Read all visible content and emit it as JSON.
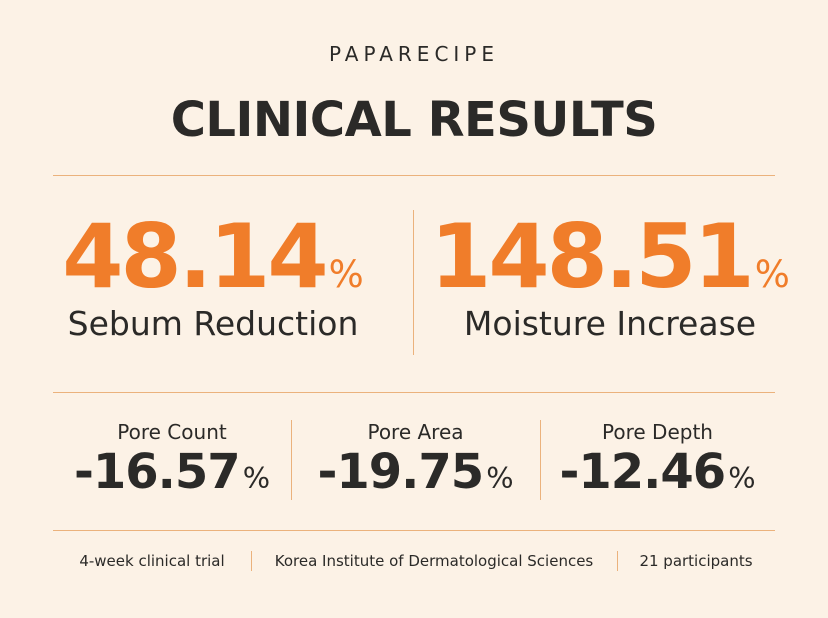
{
  "brand": "PAPARECIPE",
  "title": "CLINICAL RESULTS",
  "main_stats": [
    {
      "value": 48.14,
      "unit": "%",
      "label": "Sebum Reduction"
    },
    {
      "value": 148.51,
      "unit": "%",
      "label": "Moisture Increase"
    }
  ],
  "pore_stats": [
    {
      "label": "Pore Count",
      "value": -16.57,
      "unit": "%"
    },
    {
      "label": "Pore Area",
      "value": -19.75,
      "unit": "%"
    },
    {
      "label": "Pore Depth",
      "value": -12.46,
      "unit": "%"
    }
  ],
  "footer": [
    "4-week clinical trial",
    "Korea Institute of Dermatological Sciences",
    "21 participants"
  ]
}
